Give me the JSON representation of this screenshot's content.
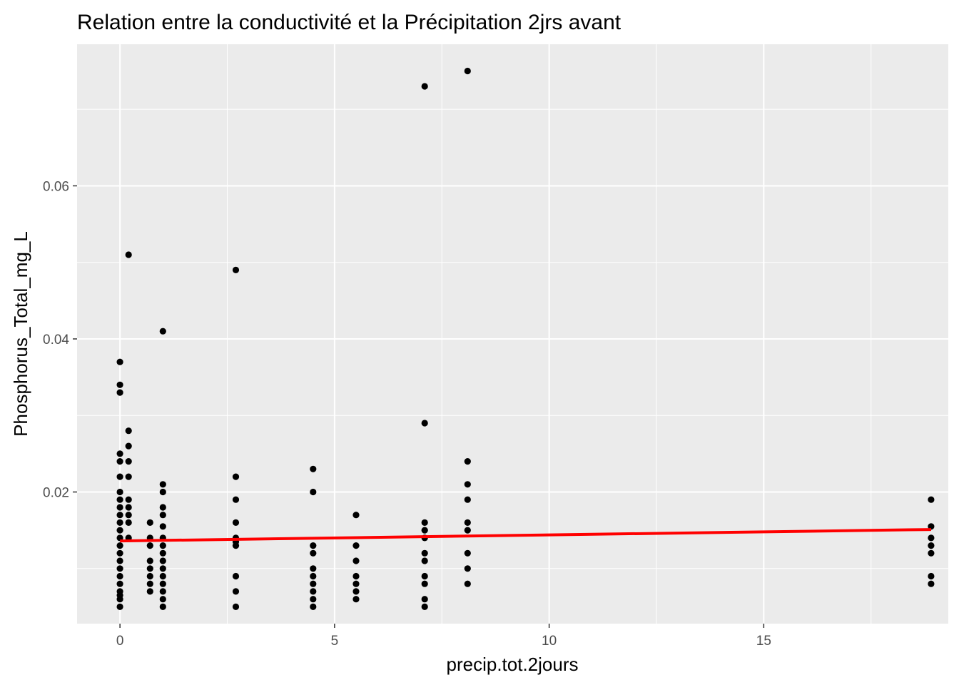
{
  "chart_data": {
    "type": "scatter",
    "title": "Relation entre la conductivité et la Précipitation 2jrs avant",
    "xlabel": "precip.tot.2jours",
    "ylabel": "Phosphorus_Total_mg_L",
    "xlim": [
      -1,
      19.3
    ],
    "ylim": [
      0.0028,
      0.0785
    ],
    "x_ticks": [
      0,
      5,
      10,
      15
    ],
    "x_tick_labels": [
      "0",
      "5",
      "10",
      "15"
    ],
    "y_ticks": [
      0.02,
      0.04,
      0.06
    ],
    "y_tick_labels": [
      "0.02",
      "0.04",
      "0.06"
    ],
    "grid": true,
    "legend": "none",
    "colors": {
      "panel": "#EBEBEB",
      "grid": "#FFFFFF",
      "points": "#000000",
      "trend_line": "#FF0000",
      "tick_label": "#4D4D4D"
    },
    "series": [
      {
        "kind": "points",
        "points": [
          [
            0,
            0.037
          ],
          [
            0,
            0.034
          ],
          [
            0,
            0.033
          ],
          [
            0,
            0.025
          ],
          [
            0,
            0.024
          ],
          [
            0,
            0.022
          ],
          [
            0,
            0.02
          ],
          [
            0,
            0.019
          ],
          [
            0,
            0.018
          ],
          [
            0,
            0.017
          ],
          [
            0,
            0.016
          ],
          [
            0,
            0.015
          ],
          [
            0,
            0.014
          ],
          [
            0,
            0.013
          ],
          [
            0,
            0.012
          ],
          [
            0,
            0.011
          ],
          [
            0,
            0.01
          ],
          [
            0,
            0.009
          ],
          [
            0,
            0.008
          ],
          [
            0,
            0.007
          ],
          [
            0,
            0.0065
          ],
          [
            0,
            0.006
          ],
          [
            0,
            0.005
          ],
          [
            0.2,
            0.051
          ],
          [
            0.2,
            0.028
          ],
          [
            0.2,
            0.026
          ],
          [
            0.2,
            0.024
          ],
          [
            0.2,
            0.022
          ],
          [
            0.2,
            0.019
          ],
          [
            0.2,
            0.018
          ],
          [
            0.2,
            0.017
          ],
          [
            0.2,
            0.016
          ],
          [
            0.2,
            0.014
          ],
          [
            0.7,
            0.016
          ],
          [
            0.7,
            0.014
          ],
          [
            0.7,
            0.013
          ],
          [
            0.7,
            0.011
          ],
          [
            0.7,
            0.01
          ],
          [
            0.7,
            0.009
          ],
          [
            0.7,
            0.008
          ],
          [
            0.7,
            0.007
          ],
          [
            1,
            0.041
          ],
          [
            1,
            0.021
          ],
          [
            1,
            0.02
          ],
          [
            1,
            0.018
          ],
          [
            1,
            0.017
          ],
          [
            1,
            0.0155
          ],
          [
            1,
            0.014
          ],
          [
            1,
            0.013
          ],
          [
            1,
            0.012
          ],
          [
            1,
            0.011
          ],
          [
            1,
            0.01
          ],
          [
            1,
            0.009
          ],
          [
            1,
            0.008
          ],
          [
            1,
            0.007
          ],
          [
            1,
            0.006
          ],
          [
            1,
            0.005
          ],
          [
            2.7,
            0.049
          ],
          [
            2.7,
            0.022
          ],
          [
            2.7,
            0.019
          ],
          [
            2.7,
            0.016
          ],
          [
            2.7,
            0.014
          ],
          [
            2.7,
            0.0135
          ],
          [
            2.7,
            0.013
          ],
          [
            2.7,
            0.009
          ],
          [
            2.7,
            0.007
          ],
          [
            2.7,
            0.005
          ],
          [
            4.5,
            0.023
          ],
          [
            4.5,
            0.02
          ],
          [
            4.5,
            0.013
          ],
          [
            4.5,
            0.012
          ],
          [
            4.5,
            0.01
          ],
          [
            4.5,
            0.009
          ],
          [
            4.5,
            0.008
          ],
          [
            4.5,
            0.007
          ],
          [
            4.5,
            0.006
          ],
          [
            4.5,
            0.005
          ],
          [
            5.5,
            0.017
          ],
          [
            5.5,
            0.013
          ],
          [
            5.5,
            0.011
          ],
          [
            5.5,
            0.009
          ],
          [
            5.5,
            0.008
          ],
          [
            5.5,
            0.007
          ],
          [
            5.5,
            0.006
          ],
          [
            7.1,
            0.073
          ],
          [
            7.1,
            0.029
          ],
          [
            7.1,
            0.016
          ],
          [
            7.1,
            0.015
          ],
          [
            7.1,
            0.014
          ],
          [
            7.1,
            0.012
          ],
          [
            7.1,
            0.011
          ],
          [
            7.1,
            0.009
          ],
          [
            7.1,
            0.008
          ],
          [
            7.1,
            0.006
          ],
          [
            7.1,
            0.005
          ],
          [
            8.1,
            0.075
          ],
          [
            8.1,
            0.024
          ],
          [
            8.1,
            0.021
          ],
          [
            8.1,
            0.019
          ],
          [
            8.1,
            0.016
          ],
          [
            8.1,
            0.015
          ],
          [
            8.1,
            0.012
          ],
          [
            8.1,
            0.01
          ],
          [
            8.1,
            0.008
          ],
          [
            18.9,
            0.019
          ],
          [
            18.9,
            0.0155
          ],
          [
            18.9,
            0.014
          ],
          [
            18.9,
            0.013
          ],
          [
            18.9,
            0.012
          ],
          [
            18.9,
            0.009
          ],
          [
            18.9,
            0.008
          ]
        ]
      },
      {
        "kind": "line",
        "x": [
          0,
          18.9
        ],
        "values": [
          0.0136,
          0.0151
        ]
      }
    ]
  }
}
